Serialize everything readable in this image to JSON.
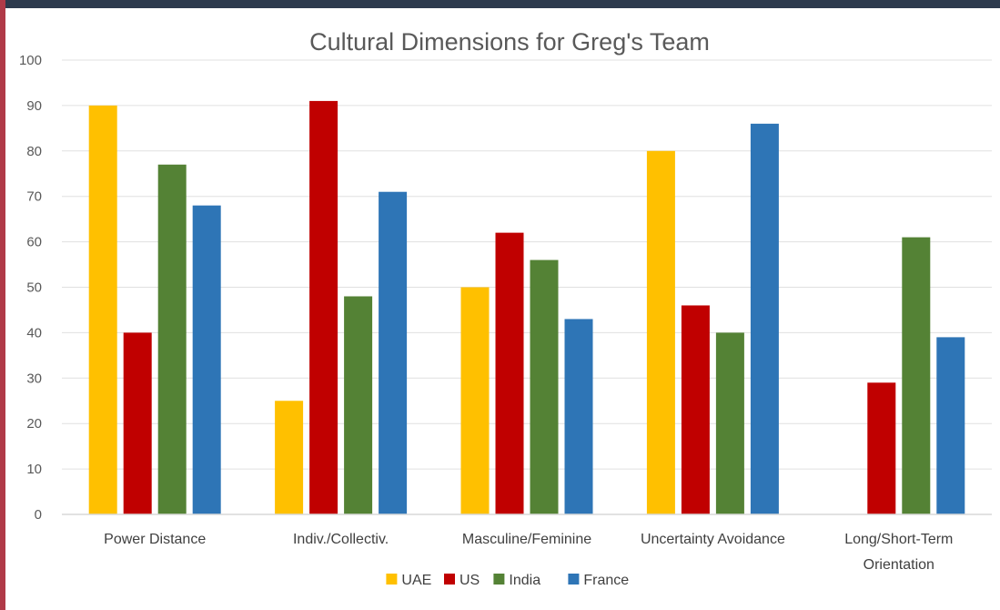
{
  "chart_data": {
    "type": "bar",
    "title": "Cultural Dimensions for Greg's Team",
    "xlabel": "",
    "ylabel": "",
    "ylim": [
      0,
      100
    ],
    "yticks": [
      0,
      10,
      20,
      30,
      40,
      50,
      60,
      70,
      80,
      90,
      100
    ],
    "grid": true,
    "legend_position": "bottom",
    "categories": [
      [
        "Power Distance"
      ],
      [
        "Indiv./Collectiv."
      ],
      [
        "Masculine/Feminine"
      ],
      [
        "Uncertainty Avoidance"
      ],
      [
        "Long/Short-Term",
        "Orientation"
      ]
    ],
    "series": [
      {
        "name": "UAE",
        "color": "#ffc000",
        "values": [
          90,
          25,
          50,
          80,
          null
        ]
      },
      {
        "name": "US",
        "color": "#c00000",
        "values": [
          40,
          91,
          62,
          46,
          29
        ]
      },
      {
        "name": "India",
        "color": "#548235",
        "values": [
          77,
          48,
          56,
          40,
          61
        ]
      },
      {
        "name": "France",
        "color": "#2e75b6",
        "values": [
          68,
          71,
          43,
          86,
          39
        ]
      }
    ]
  }
}
